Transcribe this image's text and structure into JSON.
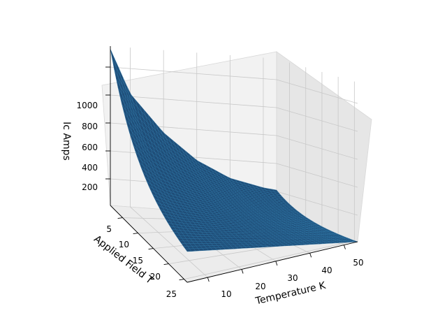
{
  "chart_data": {
    "type": "surface",
    "title": "",
    "xlabel": "Temperature K",
    "ylabel": "Applied Field T",
    "zlabel": "Ic Amps",
    "xticks": [
      10,
      20,
      30,
      40,
      50
    ],
    "yticks": [
      5,
      10,
      15,
      20,
      25
    ],
    "zticks": [
      200,
      400,
      600,
      800,
      1000
    ],
    "xlim": [
      4,
      54
    ],
    "ylim": [
      1,
      26
    ],
    "zlim": [
      10,
      1150
    ],
    "surface_color": "#1f4e79",
    "edge_color": "#2a77a8",
    "grid": true,
    "corners": [
      {
        "temperature": 4,
        "field": 1,
        "ic": 1130
      },
      {
        "temperature": 54,
        "field": 1,
        "ic": 210
      },
      {
        "temperature": 4,
        "field": 26,
        "ic": 230
      },
      {
        "temperature": 54,
        "field": 26,
        "ic": 10
      }
    ],
    "field_1T_profile": {
      "temperature": [
        4,
        10,
        20,
        30,
        40,
        50,
        54
      ],
      "ic": [
        1130,
        820,
        560,
        380,
        270,
        220,
        210
      ]
    }
  },
  "labels": {
    "x": "Temperature K",
    "y": "Applied Field T",
    "z": "Ic Amps",
    "xticks": [
      "10",
      "20",
      "30",
      "40",
      "50"
    ],
    "yticks": [
      "5",
      "10",
      "15",
      "20",
      "25"
    ],
    "zticks": [
      "200",
      "400",
      "600",
      "800",
      "1000"
    ]
  }
}
